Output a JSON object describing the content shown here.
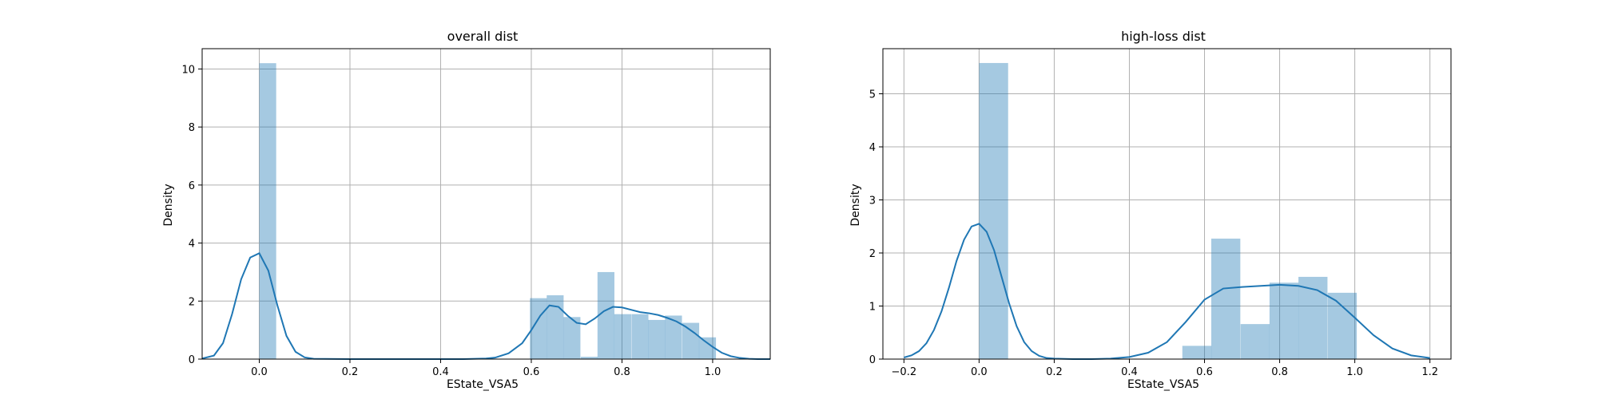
{
  "chart_data": [
    {
      "type": "bar",
      "title": "overall dist",
      "xlabel": "EState_VSA5",
      "ylabel": "Density",
      "xlim": [
        -0.126,
        1.127
      ],
      "ylim": [
        0,
        10.7
      ],
      "grid": true,
      "xticks": [
        0.0,
        0.2,
        0.4,
        0.6,
        0.8,
        1.0
      ],
      "xtick_labels": [
        "0.0",
        "0.2",
        "0.4",
        "0.6",
        "0.8",
        "1.0"
      ],
      "yticks": [
        0,
        2,
        4,
        6,
        8,
        10
      ],
      "ytick_labels": [
        "0",
        "2",
        "4",
        "6",
        "8",
        "10"
      ],
      "bin_width": 0.0373,
      "histogram": [
        {
          "x0": 0.0,
          "value": 10.2
        },
        {
          "x0": 0.597,
          "value": 2.1
        },
        {
          "x0": 0.634,
          "value": 2.2
        },
        {
          "x0": 0.671,
          "value": 1.45
        },
        {
          "x0": 0.709,
          "value": 0.08
        },
        {
          "x0": 0.746,
          "value": 3.0
        },
        {
          "x0": 0.783,
          "value": 1.55
        },
        {
          "x0": 0.821,
          "value": 1.55
        },
        {
          "x0": 0.858,
          "value": 1.35
        },
        {
          "x0": 0.895,
          "value": 1.5
        },
        {
          "x0": 0.933,
          "value": 1.25
        },
        {
          "x0": 0.97,
          "value": 0.75
        }
      ],
      "kde": {
        "x": [
          -0.126,
          -0.1,
          -0.08,
          -0.06,
          -0.04,
          -0.02,
          0.0,
          0.02,
          0.04,
          0.06,
          0.08,
          0.1,
          0.12,
          0.2,
          0.3,
          0.4,
          0.45,
          0.5,
          0.52,
          0.55,
          0.58,
          0.6,
          0.62,
          0.64,
          0.66,
          0.68,
          0.7,
          0.72,
          0.74,
          0.76,
          0.78,
          0.8,
          0.82,
          0.84,
          0.86,
          0.88,
          0.9,
          0.92,
          0.94,
          0.96,
          0.98,
          1.0,
          1.02,
          1.04,
          1.06,
          1.08,
          1.1,
          1.127
        ],
        "y": [
          0.02,
          0.12,
          0.55,
          1.55,
          2.75,
          3.5,
          3.65,
          3.05,
          1.85,
          0.8,
          0.25,
          0.06,
          0.01,
          0.0,
          0.0,
          0.0,
          0.0,
          0.02,
          0.05,
          0.2,
          0.55,
          1.0,
          1.5,
          1.85,
          1.8,
          1.5,
          1.25,
          1.2,
          1.4,
          1.65,
          1.8,
          1.78,
          1.7,
          1.62,
          1.58,
          1.52,
          1.42,
          1.3,
          1.12,
          0.9,
          0.65,
          0.42,
          0.22,
          0.1,
          0.04,
          0.01,
          0.0,
          0.0
        ]
      }
    },
    {
      "type": "bar",
      "title": "high-loss dist",
      "xlabel": "EState_VSA5",
      "ylabel": "Density",
      "xlim": [
        -0.256,
        1.256
      ],
      "ylim": [
        0,
        5.85
      ],
      "grid": true,
      "xticks": [
        -0.2,
        0.0,
        0.2,
        0.4,
        0.6,
        0.8,
        1.0,
        1.2
      ],
      "xtick_labels": [
        "−0.2",
        "0.0",
        "0.2",
        "0.4",
        "0.6",
        "0.8",
        "1.0",
        "1.2"
      ],
      "yticks": [
        0,
        1,
        2,
        3,
        4,
        5
      ],
      "ytick_labels": [
        "0",
        "1",
        "2",
        "3",
        "4",
        "5"
      ],
      "bin_width": 0.0773,
      "histogram": [
        {
          "x0": 0.0,
          "value": 5.58
        },
        {
          "x0": 0.541,
          "value": 0.25
        },
        {
          "x0": 0.618,
          "value": 2.27
        },
        {
          "x0": 0.696,
          "value": 0.66
        },
        {
          "x0": 0.773,
          "value": 1.44
        },
        {
          "x0": 0.85,
          "value": 1.55
        },
        {
          "x0": 0.928,
          "value": 1.25
        }
      ],
      "kde": {
        "x": [
          -0.2,
          -0.18,
          -0.16,
          -0.14,
          -0.12,
          -0.1,
          -0.08,
          -0.06,
          -0.04,
          -0.02,
          0.0,
          0.02,
          0.04,
          0.06,
          0.08,
          0.1,
          0.12,
          0.14,
          0.16,
          0.18,
          0.2,
          0.25,
          0.3,
          0.35,
          0.4,
          0.45,
          0.5,
          0.55,
          0.6,
          0.65,
          0.7,
          0.75,
          0.8,
          0.85,
          0.9,
          0.95,
          1.0,
          1.05,
          1.1,
          1.15,
          1.2
        ],
        "y": [
          0.03,
          0.07,
          0.15,
          0.3,
          0.55,
          0.9,
          1.35,
          1.85,
          2.25,
          2.5,
          2.55,
          2.4,
          2.05,
          1.55,
          1.05,
          0.62,
          0.32,
          0.15,
          0.06,
          0.02,
          0.01,
          0.0,
          0.0,
          0.01,
          0.04,
          0.12,
          0.32,
          0.7,
          1.12,
          1.33,
          1.36,
          1.38,
          1.4,
          1.38,
          1.3,
          1.1,
          0.78,
          0.45,
          0.2,
          0.07,
          0.02
        ]
      }
    }
  ]
}
